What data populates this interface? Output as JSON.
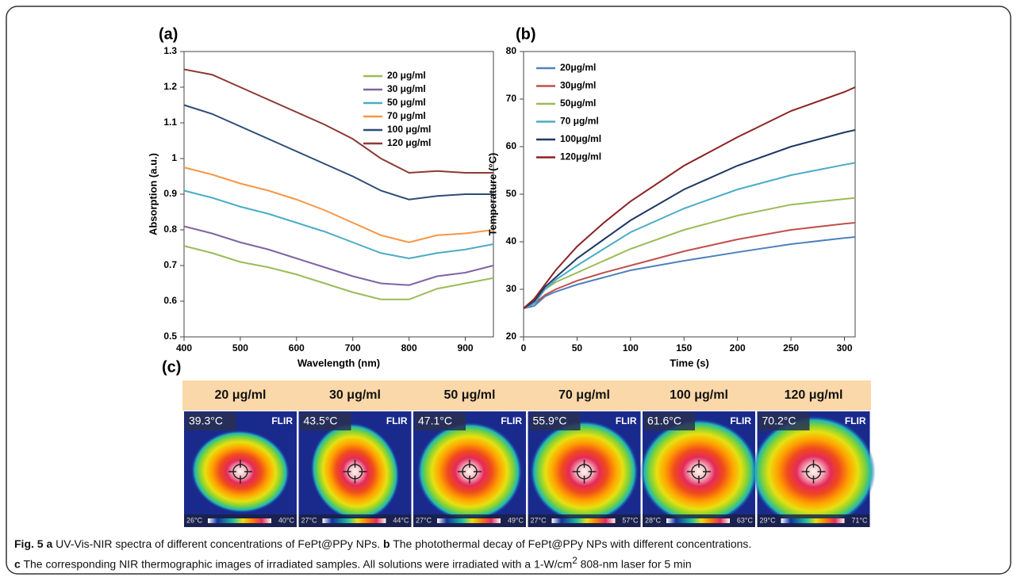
{
  "chart_data": [
    {
      "type": "line",
      "panel": "(a)",
      "xlabel": "Wavelength (nm)",
      "ylabel": "Absorption (a.u.)",
      "x": [
        400,
        450,
        500,
        550,
        600,
        650,
        700,
        750,
        800,
        850,
        900,
        950
      ],
      "xlim": [
        400,
        950
      ],
      "xticks": [
        400,
        500,
        600,
        700,
        800,
        900
      ],
      "ylim": [
        0.5,
        1.3
      ],
      "yticks": [
        0.5,
        0.6,
        0.7,
        0.8,
        0.9,
        1,
        1.1,
        1.2,
        1.3
      ],
      "series": [
        {
          "name": "20 μg/ml",
          "color": "#9bbb59",
          "values": [
            0.755,
            0.735,
            0.71,
            0.695,
            0.675,
            0.65,
            0.625,
            0.605,
            0.605,
            0.635,
            0.65,
            0.665
          ]
        },
        {
          "name": "30 μg/ml",
          "color": "#8064a2",
          "values": [
            0.81,
            0.79,
            0.765,
            0.745,
            0.72,
            0.695,
            0.67,
            0.65,
            0.645,
            0.67,
            0.68,
            0.7
          ]
        },
        {
          "name": "50 μg/ml",
          "color": "#4bacc6",
          "values": [
            0.91,
            0.89,
            0.865,
            0.845,
            0.82,
            0.795,
            0.765,
            0.735,
            0.72,
            0.735,
            0.745,
            0.76
          ]
        },
        {
          "name": "70 μg/ml",
          "color": "#f79646",
          "values": [
            0.975,
            0.955,
            0.93,
            0.91,
            0.885,
            0.855,
            0.82,
            0.785,
            0.765,
            0.785,
            0.79,
            0.8
          ]
        },
        {
          "name": "100 μg/ml",
          "color": "#2c4d75",
          "values": [
            1.15,
            1.125,
            1.09,
            1.055,
            1.02,
            0.985,
            0.95,
            0.91,
            0.885,
            0.895,
            0.9,
            0.9
          ]
        },
        {
          "name": "120 μg/ml",
          "color": "#8c3a35",
          "values": [
            1.25,
            1.235,
            1.2,
            1.165,
            1.13,
            1.095,
            1.055,
            1.0,
            0.96,
            0.965,
            0.96,
            0.96
          ]
        }
      ]
    },
    {
      "type": "line",
      "panel": "(b)",
      "xlabel": "Time (s)",
      "ylabel": "Temperature (°C)",
      "x": [
        0,
        10,
        20,
        30,
        50,
        75,
        100,
        150,
        200,
        250,
        300,
        310
      ],
      "xlim": [
        0,
        310
      ],
      "xticks": [
        0,
        50,
        100,
        150,
        200,
        250,
        300
      ],
      "ylim": [
        20,
        80
      ],
      "yticks": [
        20,
        30,
        40,
        50,
        60,
        70,
        80
      ],
      "series": [
        {
          "name": "20μg/ml",
          "color": "#4f81bd",
          "values": [
            26,
            26.5,
            28.5,
            29.5,
            31,
            32.5,
            34,
            36,
            37.8,
            39.5,
            40.8,
            41
          ]
        },
        {
          "name": "30μg/ml",
          "color": "#c0504d",
          "values": [
            26,
            27,
            28.8,
            30,
            31.8,
            33.5,
            35,
            38,
            40.5,
            42.5,
            43.8,
            44
          ]
        },
        {
          "name": "50μg/ml",
          "color": "#9bbb59",
          "values": [
            26,
            27.5,
            30,
            31.5,
            33.5,
            36,
            38.5,
            42.5,
            45.5,
            47.8,
            49,
            49.2
          ]
        },
        {
          "name": "70 μg/ml",
          "color": "#4bacc6",
          "values": [
            26,
            27,
            30,
            32,
            35,
            38.5,
            42,
            47,
            51,
            54,
            56.2,
            56.6
          ]
        },
        {
          "name": "100μg/ml",
          "color": "#1f3864",
          "values": [
            26,
            27.5,
            30.5,
            32.5,
            36.5,
            40.5,
            44.5,
            51,
            56,
            60,
            63,
            63.5
          ]
        },
        {
          "name": "120μg/ml",
          "color": "#8b2323",
          "values": [
            26,
            28,
            31,
            34,
            39,
            44,
            48.5,
            56,
            62,
            67.5,
            71.5,
            72.5
          ]
        }
      ]
    }
  ],
  "panel_c": {
    "label": "(c)",
    "brand": "FLIR",
    "images": [
      {
        "title": "20 μg/ml",
        "reading": "39.3°C",
        "scale_min": "26°C",
        "scale_max": "40°C"
      },
      {
        "title": "30 μg/ml",
        "reading": "43.5°C",
        "scale_min": "27°C",
        "scale_max": "44°C"
      },
      {
        "title": "50 μg/ml",
        "reading": "47.1°C",
        "scale_min": "27°C",
        "scale_max": "49°C"
      },
      {
        "title": "70 μg/ml",
        "reading": "55.9°C",
        "scale_min": "27°C",
        "scale_max": "57°C"
      },
      {
        "title": "100 μg/ml",
        "reading": "61.6°C",
        "scale_min": "28°C",
        "scale_max": "63°C"
      },
      {
        "title": "120 μg/ml",
        "reading": "70.2°C",
        "scale_min": "29°C",
        "scale_max": "71°C"
      }
    ]
  },
  "caption": {
    "label": "Fig. 5",
    "items": [
      {
        "letter": "a",
        "text": "UV-Vis-NIR spectra of different concentrations of FePt@PPy NPs."
      },
      {
        "letter": "b",
        "text": "The photothermal decay of FePt@PPy NPs with different concentrations."
      },
      {
        "letter": "c",
        "text": "The corresponding NIR thermographic images of irradiated samples. All solutions were irradiated with a 1-W/cm",
        "sup": "2",
        "text_end": "808-nm laser for 5 min"
      }
    ]
  }
}
